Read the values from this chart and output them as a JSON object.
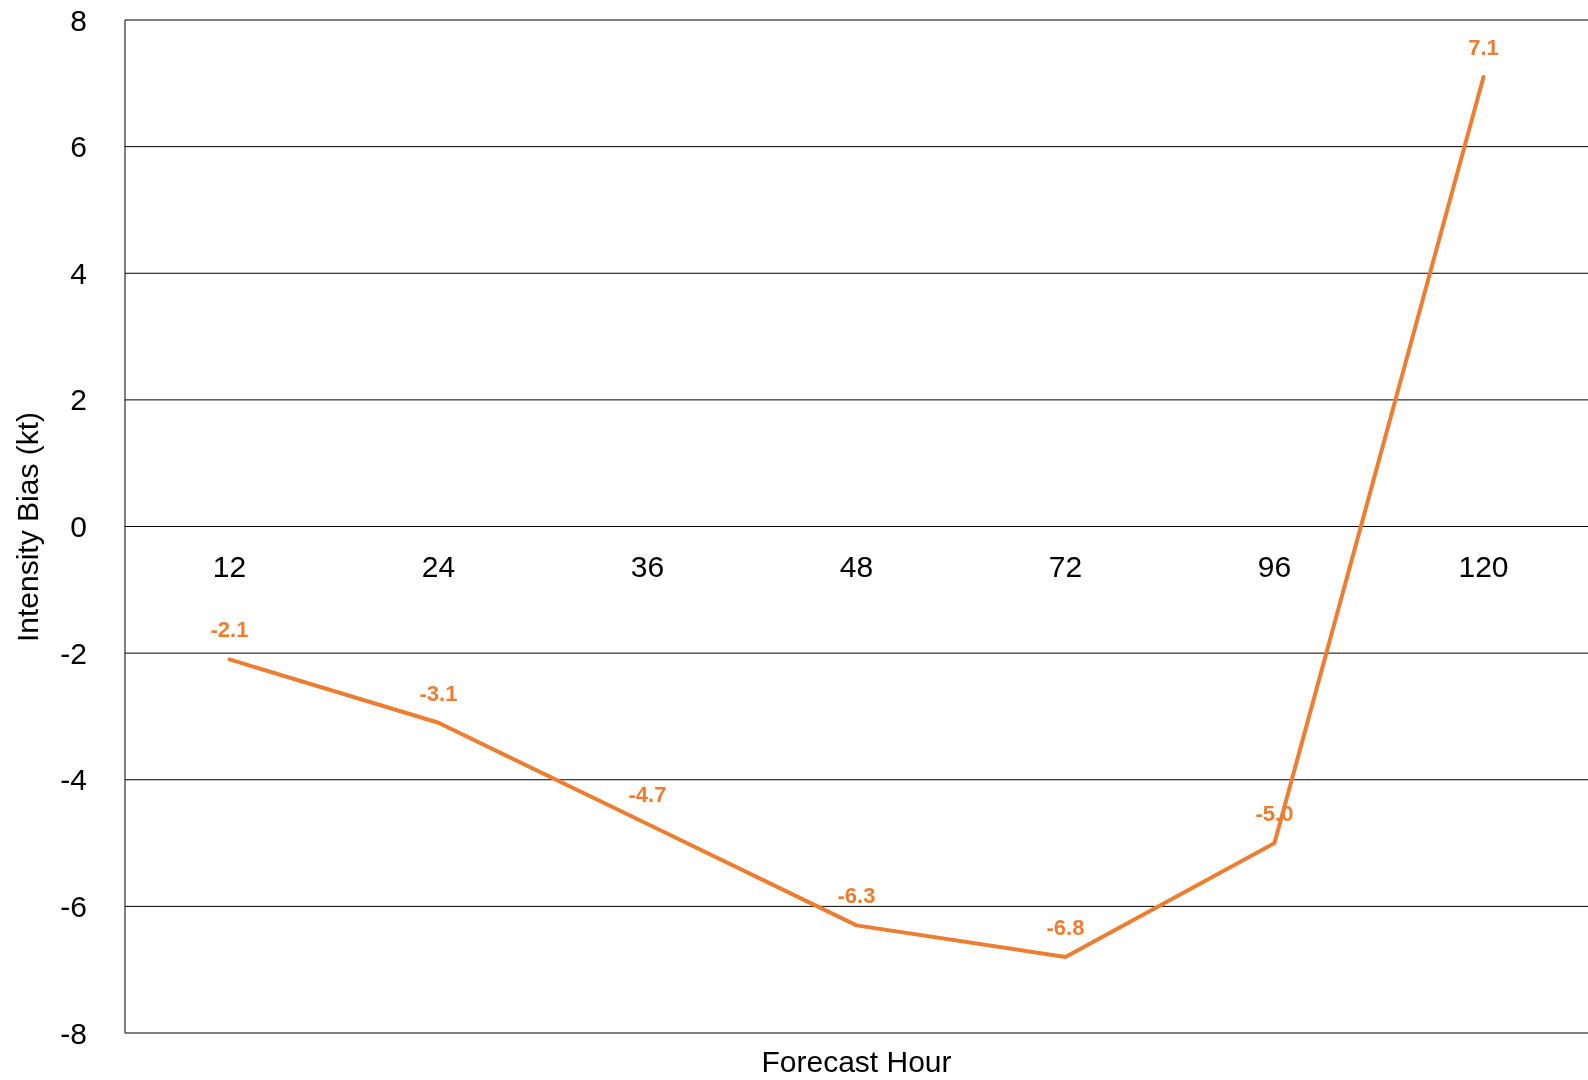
{
  "chart_data": {
    "type": "line",
    "xlabel": "Forecast Hour",
    "ylabel": "Intensity Bias (kt)",
    "categories": [
      "12",
      "24",
      "36",
      "48",
      "72",
      "96",
      "120"
    ],
    "series": [
      {
        "color": "#ed7d31",
        "values": [
          -2.1,
          -3.1,
          -4.7,
          -6.3,
          -6.8,
          -5.0,
          7.1
        ],
        "value_labels": [
          "-2.1",
          "-3.1",
          "-4.7",
          "-6.3",
          "-6.8",
          "-5.0",
          "7.1"
        ]
      }
    ],
    "ylim": [
      -8,
      8
    ],
    "yticks": [
      -8,
      -6,
      -4,
      -2,
      0,
      2,
      4,
      6,
      8
    ],
    "grid": "y",
    "marker": "none",
    "line_style": "solid"
  }
}
